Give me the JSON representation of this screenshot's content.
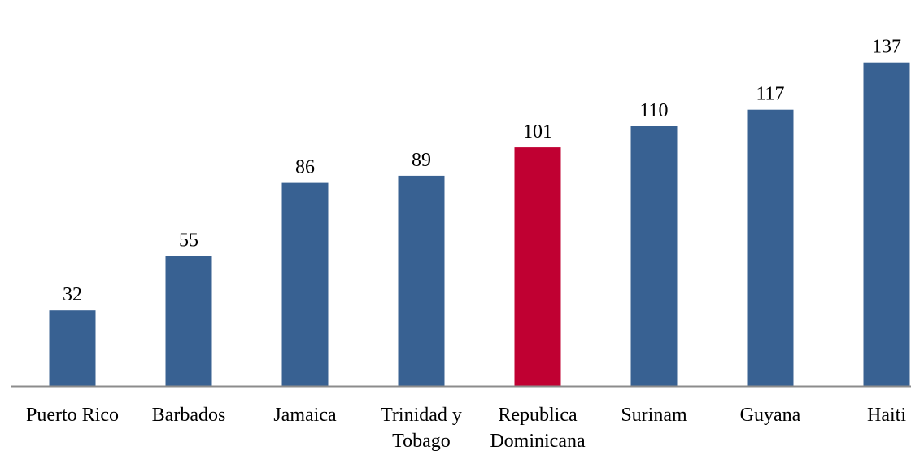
{
  "chart_data": {
    "type": "bar",
    "title": "",
    "xlabel": "",
    "ylabel": "",
    "ylim": [
      0,
      140
    ],
    "grid": false,
    "legend": "none",
    "categories": [
      [
        "Puerto Rico"
      ],
      [
        "Barbados"
      ],
      [
        "Jamaica"
      ],
      [
        "Trinidad y",
        "Tobago"
      ],
      [
        "Republica",
        "Dominicana"
      ],
      [
        "Surinam"
      ],
      [
        "Guyana"
      ],
      [
        "Haiti"
      ]
    ],
    "values": [
      32,
      55,
      86,
      89,
      101,
      110,
      117,
      137
    ],
    "value_labels": [
      "32",
      "55",
      "86",
      "89",
      "101",
      "110",
      "117",
      "137"
    ],
    "colors": {
      "default": "#386192",
      "highlight": "#c00032",
      "axis": "#8c8c8c"
    },
    "highlight_index": 4
  }
}
